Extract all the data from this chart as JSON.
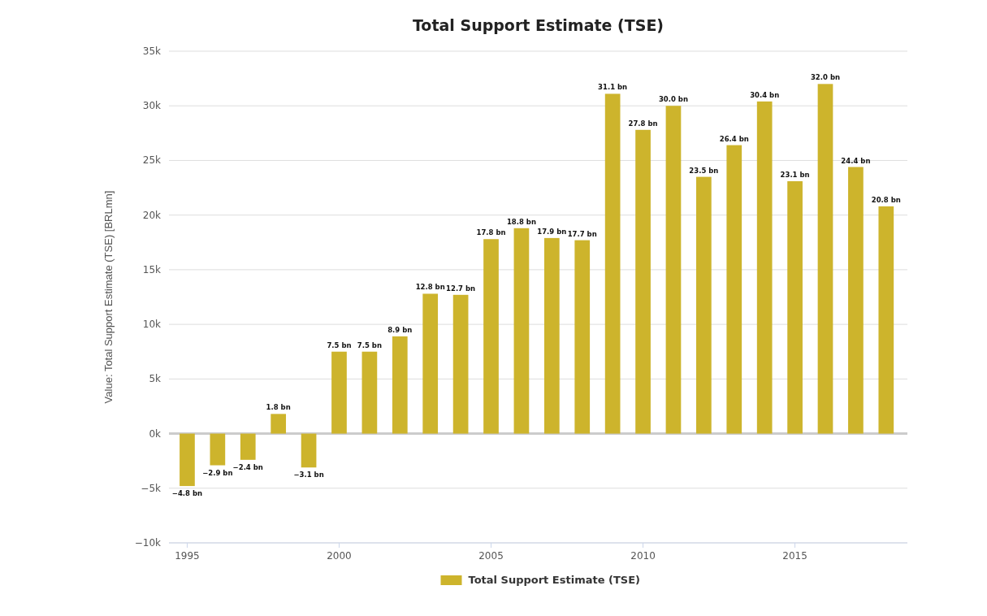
{
  "chart_data": {
    "type": "bar",
    "title": "Total Support Estimate (TSE)",
    "ylabel": "Value: Total Support Estimate (TSE) [BRLmn]",
    "x": [
      1995,
      1996,
      1997,
      1998,
      1999,
      2000,
      2001,
      2002,
      2003,
      2004,
      2005,
      2006,
      2007,
      2008,
      2009,
      2010,
      2011,
      2012,
      2013,
      2014,
      2015,
      2016,
      2017,
      2018
    ],
    "xlim": [
      1994.4,
      2018.7
    ],
    "xticks": [
      1995,
      2000,
      2005,
      2010,
      2015
    ],
    "ylim": [
      -10,
      35
    ],
    "yticks": [
      {
        "value": -10,
        "label": "−10k"
      },
      {
        "value": -5,
        "label": "−5k"
      },
      {
        "value": 0,
        "label": "0k"
      },
      {
        "value": 5,
        "label": "5k"
      },
      {
        "value": 10,
        "label": "10k"
      },
      {
        "value": 15,
        "label": "15k"
      },
      {
        "value": 20,
        "label": "20k"
      },
      {
        "value": 25,
        "label": "25k"
      },
      {
        "value": 30,
        "label": "30k"
      },
      {
        "value": 35,
        "label": "35k"
      }
    ],
    "grid": "y",
    "legend": "bottom",
    "series": [
      {
        "name": "Total Support Estimate (TSE)",
        "color": "#cdb42c",
        "values": [
          -4.8,
          -2.9,
          -2.4,
          1.8,
          -3.1,
          7.5,
          7.5,
          8.9,
          12.8,
          12.7,
          17.8,
          18.8,
          17.9,
          17.7,
          31.1,
          27.8,
          30.0,
          23.5,
          26.4,
          30.4,
          23.1,
          32.0,
          24.4,
          20.8
        ],
        "value_labels": [
          "−4.8 bn",
          "−2.9 bn",
          "−2.4 bn",
          "1.8 bn",
          "−3.1 bn",
          "7.5 bn",
          "7.5 bn",
          "8.9 bn",
          "12.8 bn",
          "12.7 bn",
          "17.8 bn",
          "18.8 bn",
          "17.9 bn",
          "17.7 bn",
          "31.1 bn",
          "27.8 bn",
          "30.0 bn",
          "23.5 bn",
          "26.4 bn",
          "30.4 bn",
          "23.1 bn",
          "32.0 bn",
          "24.4 bn",
          "20.8 bn"
        ]
      }
    ]
  }
}
